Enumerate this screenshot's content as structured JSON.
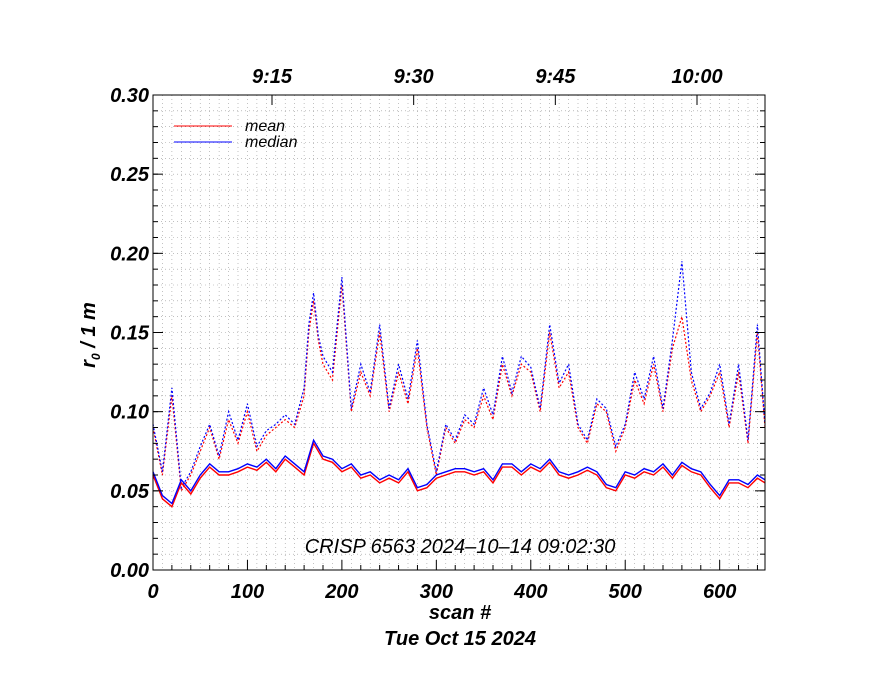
{
  "chart_data": {
    "type": "line",
    "title": "",
    "xlabel": "scan #",
    "ylabel": "r0 / 1 m",
    "ylabel_main": "r",
    "ylabel_sub": "0",
    "ylabel_rest": " / 1 m",
    "subtitle": "Tue Oct 15 2024",
    "annotation": "CRISP 6563 2024–10–14 09:02:30",
    "xlim": [
      0,
      648
    ],
    "ylim": [
      0,
      0.3
    ],
    "grid": true,
    "x_ticks": [
      0,
      100,
      200,
      300,
      400,
      500,
      600
    ],
    "x_tick_labels": [
      "0",
      "100",
      "200",
      "300",
      "400",
      "500",
      "600"
    ],
    "y_ticks": [
      0.0,
      0.05,
      0.1,
      0.15,
      0.2,
      0.25,
      0.3
    ],
    "y_tick_labels": [
      "0.00",
      "0.05",
      "0.10",
      "0.15",
      "0.20",
      "0.25",
      "0.30"
    ],
    "top_axis_ticks": [
      126,
      276,
      426,
      576
    ],
    "top_axis_labels": [
      "9:15",
      "9:30",
      "9:45",
      "10:00"
    ],
    "legend": [
      {
        "label": "mean",
        "color": "#ff0000"
      },
      {
        "label": "median",
        "color": "#0000ff"
      }
    ],
    "legend_position": "top-left",
    "series": [
      {
        "name": "mean (subfield, dotted)",
        "color": "#ff0000",
        "style": "dotted",
        "x": [
          0,
          10,
          20,
          30,
          40,
          50,
          60,
          70,
          80,
          90,
          100,
          110,
          120,
          130,
          140,
          150,
          160,
          165,
          170,
          175,
          180,
          190,
          200,
          210,
          220,
          230,
          240,
          250,
          260,
          270,
          280,
          290,
          300,
          310,
          320,
          330,
          340,
          350,
          360,
          370,
          380,
          390,
          400,
          410,
          420,
          430,
          440,
          450,
          460,
          470,
          480,
          490,
          500,
          510,
          520,
          530,
          540,
          550,
          560,
          570,
          580,
          590,
          600,
          610,
          620,
          630,
          640,
          648
        ],
        "values": [
          0.09,
          0.06,
          0.11,
          0.05,
          0.06,
          0.075,
          0.09,
          0.07,
          0.095,
          0.08,
          0.1,
          0.075,
          0.085,
          0.09,
          0.095,
          0.09,
          0.11,
          0.15,
          0.17,
          0.145,
          0.13,
          0.12,
          0.18,
          0.1,
          0.125,
          0.11,
          0.15,
          0.1,
          0.125,
          0.105,
          0.14,
          0.09,
          0.06,
          0.09,
          0.08,
          0.095,
          0.09,
          0.11,
          0.095,
          0.13,
          0.11,
          0.13,
          0.125,
          0.1,
          0.15,
          0.115,
          0.125,
          0.09,
          0.08,
          0.105,
          0.1,
          0.075,
          0.09,
          0.12,
          0.105,
          0.13,
          0.1,
          0.14,
          0.16,
          0.12,
          0.1,
          0.11,
          0.125,
          0.09,
          0.125,
          0.08,
          0.15,
          0.09
        ]
      },
      {
        "name": "median (subfield, dotted)",
        "color": "#0000ff",
        "style": "dotted",
        "x": [
          0,
          10,
          20,
          30,
          40,
          50,
          60,
          70,
          80,
          90,
          100,
          110,
          120,
          130,
          140,
          150,
          160,
          165,
          170,
          175,
          180,
          190,
          200,
          210,
          220,
          230,
          240,
          250,
          260,
          270,
          280,
          290,
          300,
          310,
          320,
          330,
          340,
          350,
          360,
          370,
          380,
          390,
          400,
          410,
          420,
          430,
          440,
          450,
          460,
          470,
          480,
          490,
          500,
          510,
          520,
          530,
          540,
          550,
          560,
          570,
          580,
          590,
          600,
          610,
          620,
          630,
          640,
          648
        ],
        "values": [
          0.092,
          0.062,
          0.115,
          0.052,
          0.062,
          0.078,
          0.092,
          0.072,
          0.1,
          0.082,
          0.105,
          0.078,
          0.088,
          0.092,
          0.098,
          0.092,
          0.115,
          0.155,
          0.175,
          0.148,
          0.135,
          0.125,
          0.185,
          0.102,
          0.13,
          0.112,
          0.155,
          0.102,
          0.13,
          0.108,
          0.145,
          0.092,
          0.062,
          0.092,
          0.082,
          0.098,
          0.092,
          0.115,
          0.098,
          0.135,
          0.112,
          0.135,
          0.128,
          0.102,
          0.155,
          0.118,
          0.13,
          0.092,
          0.082,
          0.108,
          0.102,
          0.078,
          0.092,
          0.125,
          0.108,
          0.135,
          0.102,
          0.145,
          0.195,
          0.125,
          0.102,
          0.112,
          0.13,
          0.092,
          0.13,
          0.082,
          0.155,
          0.092
        ]
      },
      {
        "name": "mean",
        "color": "#ff0000",
        "style": "solid",
        "x": [
          0,
          10,
          20,
          30,
          40,
          50,
          60,
          70,
          80,
          90,
          100,
          110,
          120,
          130,
          140,
          150,
          160,
          170,
          180,
          190,
          200,
          210,
          220,
          230,
          240,
          250,
          260,
          270,
          280,
          290,
          300,
          310,
          320,
          330,
          340,
          350,
          360,
          370,
          380,
          390,
          400,
          410,
          420,
          430,
          440,
          450,
          460,
          470,
          480,
          490,
          500,
          510,
          520,
          530,
          540,
          550,
          560,
          570,
          580,
          590,
          600,
          610,
          620,
          630,
          640,
          648
        ],
        "values": [
          0.06,
          0.045,
          0.04,
          0.055,
          0.048,
          0.058,
          0.065,
          0.06,
          0.06,
          0.062,
          0.065,
          0.063,
          0.068,
          0.062,
          0.07,
          0.065,
          0.06,
          0.08,
          0.07,
          0.068,
          0.062,
          0.065,
          0.058,
          0.06,
          0.055,
          0.058,
          0.055,
          0.062,
          0.05,
          0.052,
          0.058,
          0.06,
          0.062,
          0.062,
          0.06,
          0.062,
          0.055,
          0.065,
          0.065,
          0.06,
          0.065,
          0.062,
          0.068,
          0.06,
          0.058,
          0.06,
          0.063,
          0.06,
          0.052,
          0.05,
          0.06,
          0.058,
          0.062,
          0.06,
          0.065,
          0.058,
          0.066,
          0.062,
          0.06,
          0.052,
          0.045,
          0.055,
          0.055,
          0.052,
          0.058,
          0.055
        ]
      },
      {
        "name": "median",
        "color": "#0000ff",
        "style": "solid",
        "x": [
          0,
          10,
          20,
          30,
          40,
          50,
          60,
          70,
          80,
          90,
          100,
          110,
          120,
          130,
          140,
          150,
          160,
          170,
          180,
          190,
          200,
          210,
          220,
          230,
          240,
          250,
          260,
          270,
          280,
          290,
          300,
          310,
          320,
          330,
          340,
          350,
          360,
          370,
          380,
          390,
          400,
          410,
          420,
          430,
          440,
          450,
          460,
          470,
          480,
          490,
          500,
          510,
          520,
          530,
          540,
          550,
          560,
          570,
          580,
          590,
          600,
          610,
          620,
          630,
          640,
          648
        ],
        "values": [
          0.062,
          0.047,
          0.042,
          0.057,
          0.05,
          0.06,
          0.067,
          0.062,
          0.062,
          0.064,
          0.067,
          0.065,
          0.07,
          0.064,
          0.072,
          0.067,
          0.062,
          0.082,
          0.072,
          0.07,
          0.064,
          0.067,
          0.06,
          0.062,
          0.057,
          0.06,
          0.057,
          0.064,
          0.052,
          0.054,
          0.06,
          0.062,
          0.064,
          0.064,
          0.062,
          0.064,
          0.057,
          0.067,
          0.067,
          0.062,
          0.067,
          0.064,
          0.07,
          0.062,
          0.06,
          0.062,
          0.065,
          0.062,
          0.054,
          0.052,
          0.062,
          0.06,
          0.064,
          0.062,
          0.067,
          0.06,
          0.068,
          0.064,
          0.062,
          0.054,
          0.047,
          0.057,
          0.057,
          0.054,
          0.06,
          0.057
        ]
      }
    ]
  }
}
